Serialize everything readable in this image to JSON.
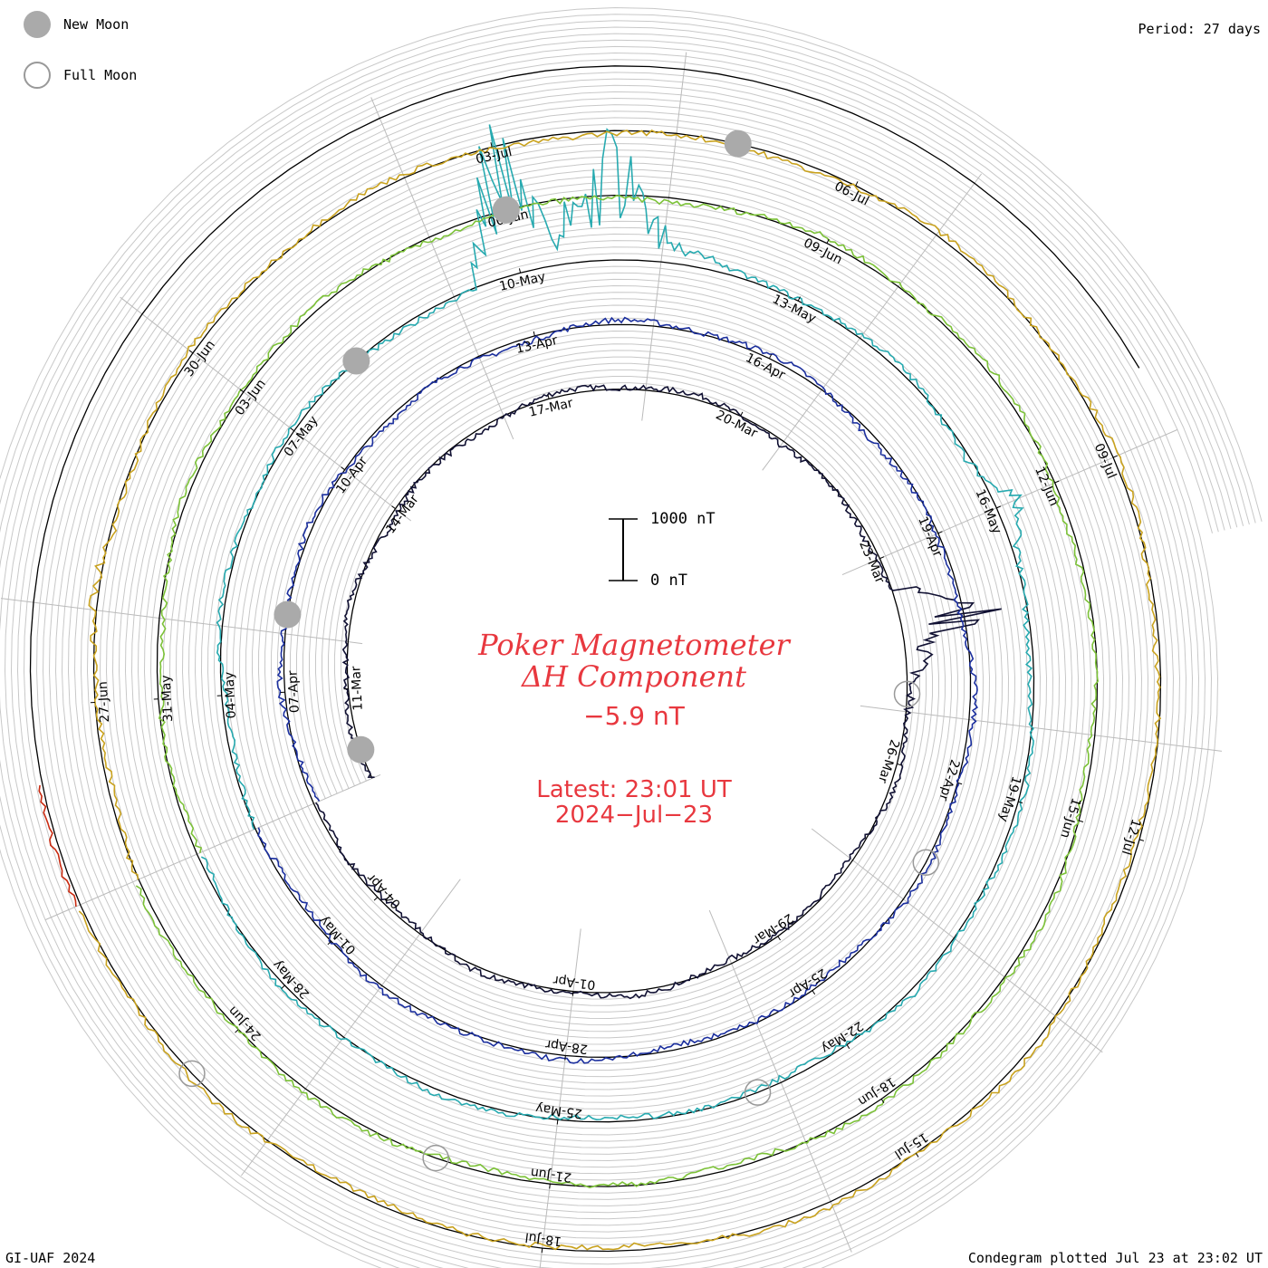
{
  "legend": {
    "new_moon_label": "New Moon",
    "full_moon_label": "Full Moon",
    "new_moon_color": "#aaaaaa",
    "full_moon_color": "#999999"
  },
  "header": {
    "period": "Period: 27 days"
  },
  "footer": {
    "credit": "GI-UAF 2024",
    "plotted": "Condegram plotted Jul 23 at 23:02 UT"
  },
  "title": {
    "line1": "Poker Magnetometer",
    "line2": "ΔH Component",
    "value": "−5.9 nT",
    "latest": "Latest: 23:01 UT",
    "date": "2024−Jul−23"
  },
  "scale": {
    "top_label": "1000 nT",
    "bottom_label": "0 nT"
  },
  "chart_data": {
    "type": "line",
    "subtype": "condegram-spiral",
    "period_days": 27,
    "title": "Poker Magnetometer ΔH Component",
    "latest_value": "−5.9 nT",
    "latest_time": "2024-07-23 23:01 UT",
    "scale_bar": {
      "min_nT": 0,
      "max_nT": 1000
    },
    "start_date": "2024-03-10",
    "end_date": "2024-07-23",
    "rotations": [
      {
        "start": "2024-03-10",
        "color": "#111133"
      },
      {
        "start": "2024-04-06",
        "color": "#1b2f9e"
      },
      {
        "start": "2024-05-03",
        "color": "#27aab0"
      },
      {
        "start": "2024-05-30",
        "color": "#7cc238"
      },
      {
        "start": "2024-06-26",
        "color": "#c9a21e"
      },
      {
        "start": "2024-07-23",
        "color": "#c92a10"
      }
    ],
    "date_labels": [
      "11-Mar",
      "14-Mar",
      "17-Mar",
      "20-Mar",
      "23-Mar",
      "26-Mar",
      "29-Mar",
      "01-Apr",
      "04-Apr",
      "07-Apr",
      "10-Apr",
      "13-Apr",
      "16-Apr",
      "19-Apr",
      "22-Apr",
      "25-Apr",
      "28-Apr",
      "01-May",
      "04-May",
      "07-May",
      "10-May",
      "13-May",
      "16-May",
      "19-May",
      "22-May",
      "25-May",
      "28-May",
      "31-May",
      "03-Jun",
      "06-Jun",
      "09-Jun",
      "12-Jun",
      "15-Jun",
      "18-Jun",
      "21-Jun",
      "24-Jun",
      "27-Jun",
      "30-Jun",
      "03-Jul",
      "06-Jul",
      "09-Jul",
      "12-Jul",
      "15-Jul",
      "18-Jul"
    ],
    "new_moons": [
      "2024-03-10",
      "2024-04-08",
      "2024-05-08",
      "2024-06-06",
      "2024-07-05"
    ],
    "full_moons": [
      "2024-03-25",
      "2024-04-23",
      "2024-05-23",
      "2024-06-22",
      "2024-07-21"
    ],
    "disturbances": [
      {
        "date": "2024-03-24",
        "peak_nT": 1300
      },
      {
        "date": "2024-05-10",
        "peak_nT": 2300
      },
      {
        "date": "2024-05-11",
        "peak_nT": 2000
      },
      {
        "date": "2024-05-16",
        "peak_nT": 500
      },
      {
        "date": "2024-06-28",
        "peak_nT": 200
      }
    ]
  }
}
